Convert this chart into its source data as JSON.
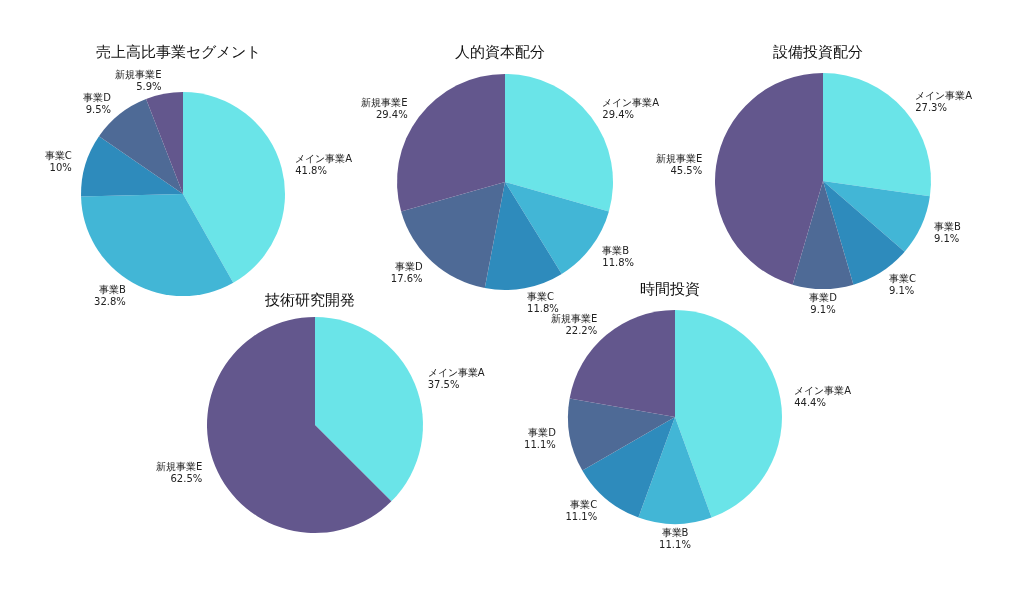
{
  "chart_data": [
    {
      "type": "pie",
      "title": "売上高比事業セグメント",
      "categories": [
        "メイン事業A",
        "事業B",
        "事業C",
        "事業D",
        "新規事業E"
      ],
      "values": [
        41.8,
        32.8,
        10,
        9.5,
        5.9
      ],
      "value_labels": [
        "41.8%",
        "32.8%",
        "10%",
        "9.5%",
        "5.9%"
      ],
      "colors": [
        "#6ae4e8",
        "#42b6d6",
        "#2e8bbc",
        "#4e6a96",
        "#63578d"
      ]
    },
    {
      "type": "pie",
      "title": "人的資本配分",
      "categories": [
        "メイン事業A",
        "事業B",
        "事業C",
        "事業D",
        "新規事業E"
      ],
      "values": [
        29.4,
        11.8,
        11.8,
        17.6,
        29.4
      ],
      "value_labels": [
        "29.4%",
        "11.8%",
        "11.8%",
        "17.6%",
        "29.4%"
      ],
      "colors": [
        "#6ae4e8",
        "#42b6d6",
        "#2e8bbc",
        "#4e6a96",
        "#63578d"
      ]
    },
    {
      "type": "pie",
      "title": "設備投資配分",
      "categories": [
        "メイン事業A",
        "事業B",
        "事業C",
        "事業D",
        "新規事業E"
      ],
      "values": [
        27.3,
        9.1,
        9.1,
        9.1,
        45.5
      ],
      "value_labels": [
        "27.3%",
        "9.1%",
        "9.1%",
        "9.1%",
        "45.5%"
      ],
      "colors": [
        "#6ae4e8",
        "#42b6d6",
        "#2e8bbc",
        "#4e6a96",
        "#63578d"
      ]
    },
    {
      "type": "pie",
      "title": "技術研究開発",
      "categories": [
        "メイン事業A",
        "新規事業E"
      ],
      "values": [
        37.5,
        62.5
      ],
      "value_labels": [
        "37.5%",
        "62.5%"
      ],
      "colors": [
        "#6ae4e8",
        "#63578d"
      ]
    },
    {
      "type": "pie",
      "title": "時間投資",
      "categories": [
        "メイン事業A",
        "事業B",
        "事業C",
        "事業D",
        "新規事業E"
      ],
      "values": [
        44.4,
        11.1,
        11.1,
        11.1,
        22.2
      ],
      "value_labels": [
        "44.4%",
        "11.1%",
        "11.1%",
        "11.1%",
        "22.2%"
      ],
      "colors": [
        "#6ae4e8",
        "#42b6d6",
        "#2e8bbc",
        "#4e6a96",
        "#63578d"
      ]
    }
  ]
}
